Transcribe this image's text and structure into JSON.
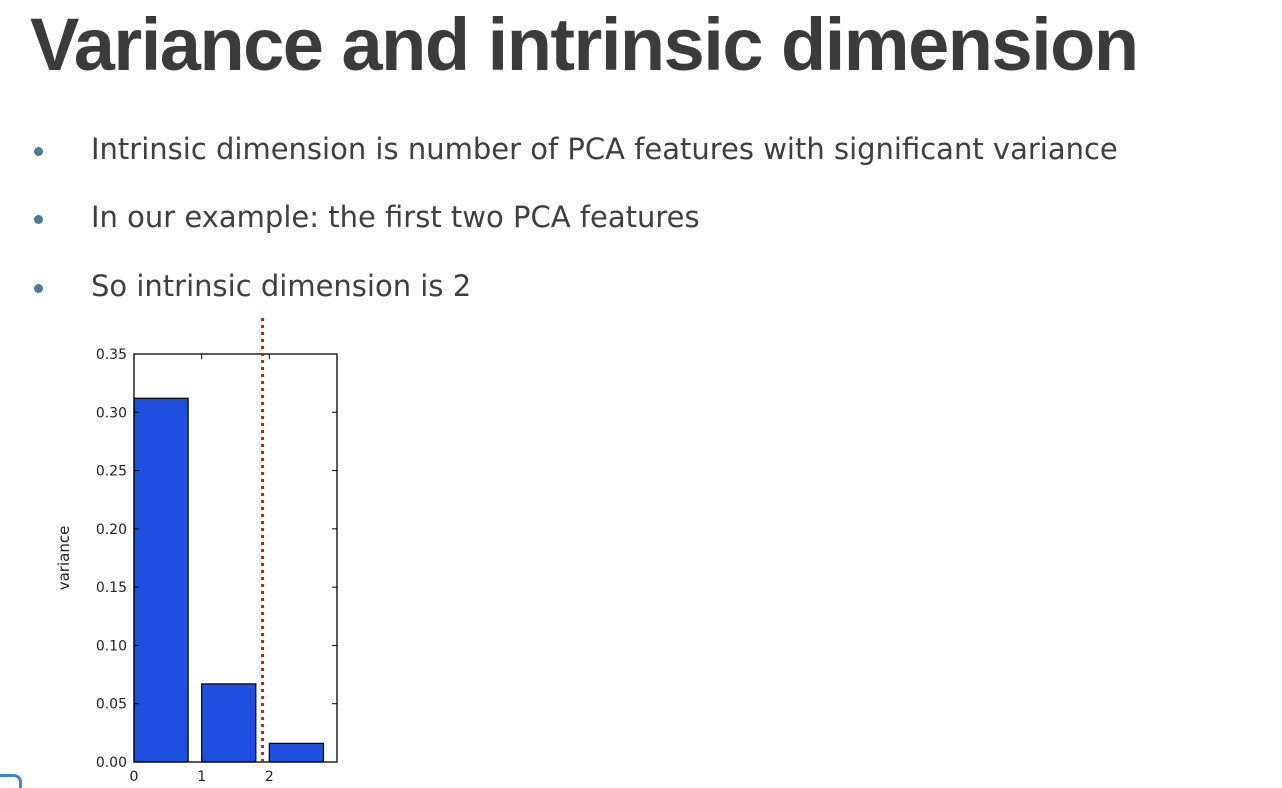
{
  "slide": {
    "title": "Variance and intrinsic dimension",
    "bullets": [
      "Intrinsic dimension is number of PCA features with significant variance",
      "In our example: the first two PCA features",
      "So intrinsic dimension is 2"
    ]
  },
  "chart_data": {
    "type": "bar",
    "categories": [
      "0",
      "1",
      "2"
    ],
    "x": [
      0,
      1,
      2
    ],
    "values": [
      0.312,
      0.067,
      0.016
    ],
    "bar_width": 0.8,
    "title": "",
    "xlabel": "",
    "ylabel": "variance",
    "xlim": [
      0,
      3
    ],
    "ylim": [
      0,
      0.35
    ],
    "yticks": [
      "0.00",
      "0.05",
      "0.10",
      "0.15",
      "0.20",
      "0.25",
      "0.30",
      "0.35"
    ],
    "xticks": [
      "0",
      "1",
      "2"
    ],
    "grid": false,
    "bar_color": "#1f4fe0",
    "vline": {
      "x": 1.9,
      "style": "dotted",
      "color": "#b22b18"
    }
  }
}
